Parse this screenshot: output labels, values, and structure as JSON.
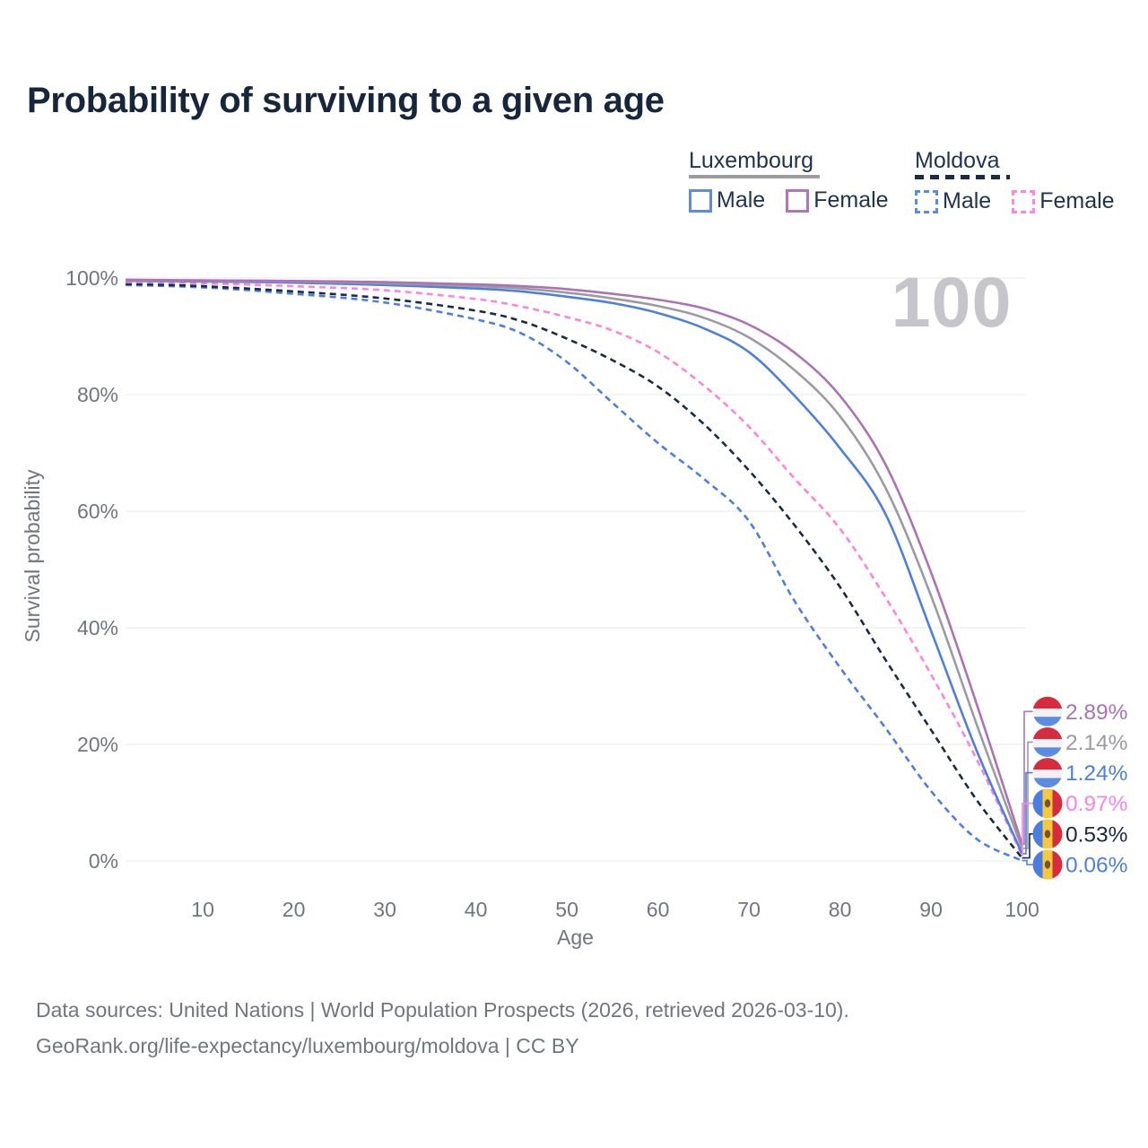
{
  "title": "Probability of surviving to a given age",
  "watermark": "100",
  "legend": {
    "groups": [
      {
        "name": "Luxembourg",
        "line_style": "solid",
        "underline_color": "#9b9ba1",
        "items": [
          {
            "label": "Male",
            "color": "#5b8ce4",
            "dashed": false
          },
          {
            "label": "Female",
            "color": "#b273b8",
            "dashed": false
          }
        ]
      },
      {
        "name": "Moldova",
        "line_style": "dashed",
        "underline_color": "#1b2b45",
        "items": [
          {
            "label": "Male",
            "color": "#5b8ce4",
            "dashed": true
          },
          {
            "label": "Female",
            "color": "#ff85e0",
            "dashed": true
          }
        ]
      }
    ]
  },
  "chart_data": {
    "type": "line",
    "xlabel": "Age",
    "ylabel": "Survival probability",
    "x_ticks": [
      10,
      20,
      30,
      40,
      50,
      60,
      70,
      80,
      90,
      100
    ],
    "y_ticks": [
      0,
      20,
      40,
      60,
      80,
      100
    ],
    "y_tick_suffix": "%",
    "xlim": [
      0,
      100
    ],
    "ylim": [
      0,
      100
    ],
    "grid": "horizontal",
    "legend_position": "top-right",
    "ages": [
      2,
      10,
      20,
      30,
      40,
      45,
      50,
      55,
      60,
      65,
      70,
      75,
      80,
      85,
      90,
      95,
      100
    ],
    "series": [
      {
        "id": "luxembourg-female",
        "country": "Luxembourg",
        "sex": "Female",
        "color": "#ad72b5",
        "dashed": false,
        "flag": "luxembourg",
        "end_label": "2.89%",
        "end_value": 2.89,
        "values": [
          99.7,
          99.6,
          99.5,
          99.3,
          98.9,
          98.6,
          98.1,
          97.3,
          96.3,
          94.8,
          92.0,
          87.2,
          79.8,
          68.0,
          49.5,
          27.0,
          2.89
        ]
      },
      {
        "id": "luxembourg-total",
        "country": "Luxembourg",
        "sex": "Both",
        "color": "#9b9ba1",
        "dashed": false,
        "flag": "luxembourg",
        "end_label": "2.14%",
        "end_value": 2.14,
        "values": [
          99.6,
          99.5,
          99.4,
          99.1,
          98.6,
          98.2,
          97.5,
          96.5,
          95.2,
          93.2,
          89.8,
          84.2,
          76.3,
          64.0,
          45.5,
          23.5,
          2.14
        ]
      },
      {
        "id": "luxembourg-male",
        "country": "Luxembourg",
        "sex": "Male",
        "color": "#4d7fdf",
        "dashed": false,
        "flag": "luxembourg",
        "end_label": "1.24%",
        "end_value": 1.24,
        "values": [
          99.5,
          99.4,
          99.2,
          98.8,
          98.2,
          97.7,
          96.8,
          95.7,
          94.0,
          91.4,
          87.3,
          79.8,
          70.8,
          59.5,
          39.5,
          19.0,
          1.24
        ]
      },
      {
        "id": "moldova-female",
        "country": "Moldova",
        "sex": "Female",
        "color": "#fb84e2",
        "dashed": true,
        "flag": "moldova",
        "end_label": "0.97%",
        "end_value": 0.97,
        "values": [
          99.3,
          99.1,
          98.6,
          97.9,
          96.4,
          95.1,
          93.3,
          91.0,
          87.3,
          81.6,
          74.5,
          65.6,
          57.0,
          45.2,
          32.0,
          17.5,
          0.97
        ]
      },
      {
        "id": "moldova-total",
        "country": "Moldova",
        "sex": "Both",
        "color": "#1b2b45",
        "dashed": true,
        "flag": "moldova",
        "end_label": "0.53%",
        "end_value": 0.53,
        "values": [
          99.0,
          98.6,
          97.7,
          96.5,
          94.4,
          92.6,
          89.6,
          85.9,
          81.4,
          75.0,
          67.0,
          57.6,
          47.0,
          34.5,
          22.5,
          10.5,
          0.53
        ]
      },
      {
        "id": "moldova-male",
        "country": "Moldova",
        "sex": "Male",
        "color": "#4d7fdf",
        "dashed": true,
        "flag": "moldova",
        "end_label": "0.06%",
        "end_value": 0.06,
        "values": [
          98.8,
          98.4,
          97.3,
          95.8,
          92.9,
          90.5,
          85.6,
          78.6,
          71.7,
          65.6,
          58.3,
          44.6,
          33.2,
          22.8,
          12.0,
          3.8,
          0.06
        ]
      }
    ],
    "flag_colors": {
      "luxembourg": {
        "red": "#d62c3e",
        "white": "#f2f2f4",
        "blue": "#5b8ce4"
      },
      "moldova": {
        "blue": "#4a7de0",
        "yellow": "#f6c83f",
        "red": "#d62c3e",
        "emblem": "#7a5230"
      }
    }
  },
  "footer": {
    "line1": "Data sources: United Nations | World Population Prospects (2026, retrieved 2026-03-10).",
    "line2": "GeoRank.org/life-expectancy/luxembourg/moldova | CC BY"
  }
}
